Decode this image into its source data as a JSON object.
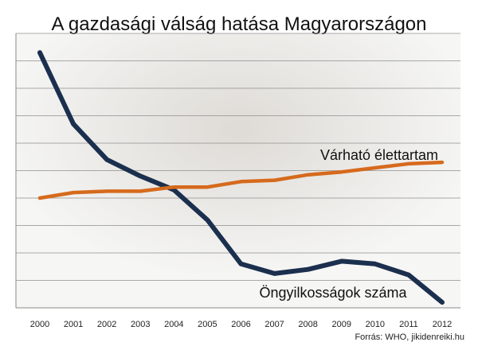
{
  "chart_data": {
    "type": "line",
    "title": "A gazdasági válság hatása Magyarországon",
    "x": [
      "2000",
      "2001",
      "2002",
      "2003",
      "2004",
      "2005",
      "2006",
      "2007",
      "2008",
      "2009",
      "2010",
      "2011",
      "2012"
    ],
    "ylim": [
      0,
      10
    ],
    "grid": true,
    "series": [
      {
        "name": "Öngyilkosságok száma",
        "color": "#1b2f4e",
        "values": [
          9.3,
          6.7,
          5.4,
          4.8,
          4.3,
          3.2,
          1.6,
          1.25,
          1.4,
          1.7,
          1.6,
          1.2,
          0.2
        ]
      },
      {
        "name": "Várható élettartam",
        "color": "#d66a1c",
        "values": [
          4.0,
          4.2,
          4.25,
          4.25,
          4.4,
          4.4,
          4.6,
          4.65,
          4.85,
          4.95,
          5.1,
          5.25,
          5.3
        ]
      }
    ],
    "source": "Forrás: WHO, jikidenreiki.hu"
  }
}
